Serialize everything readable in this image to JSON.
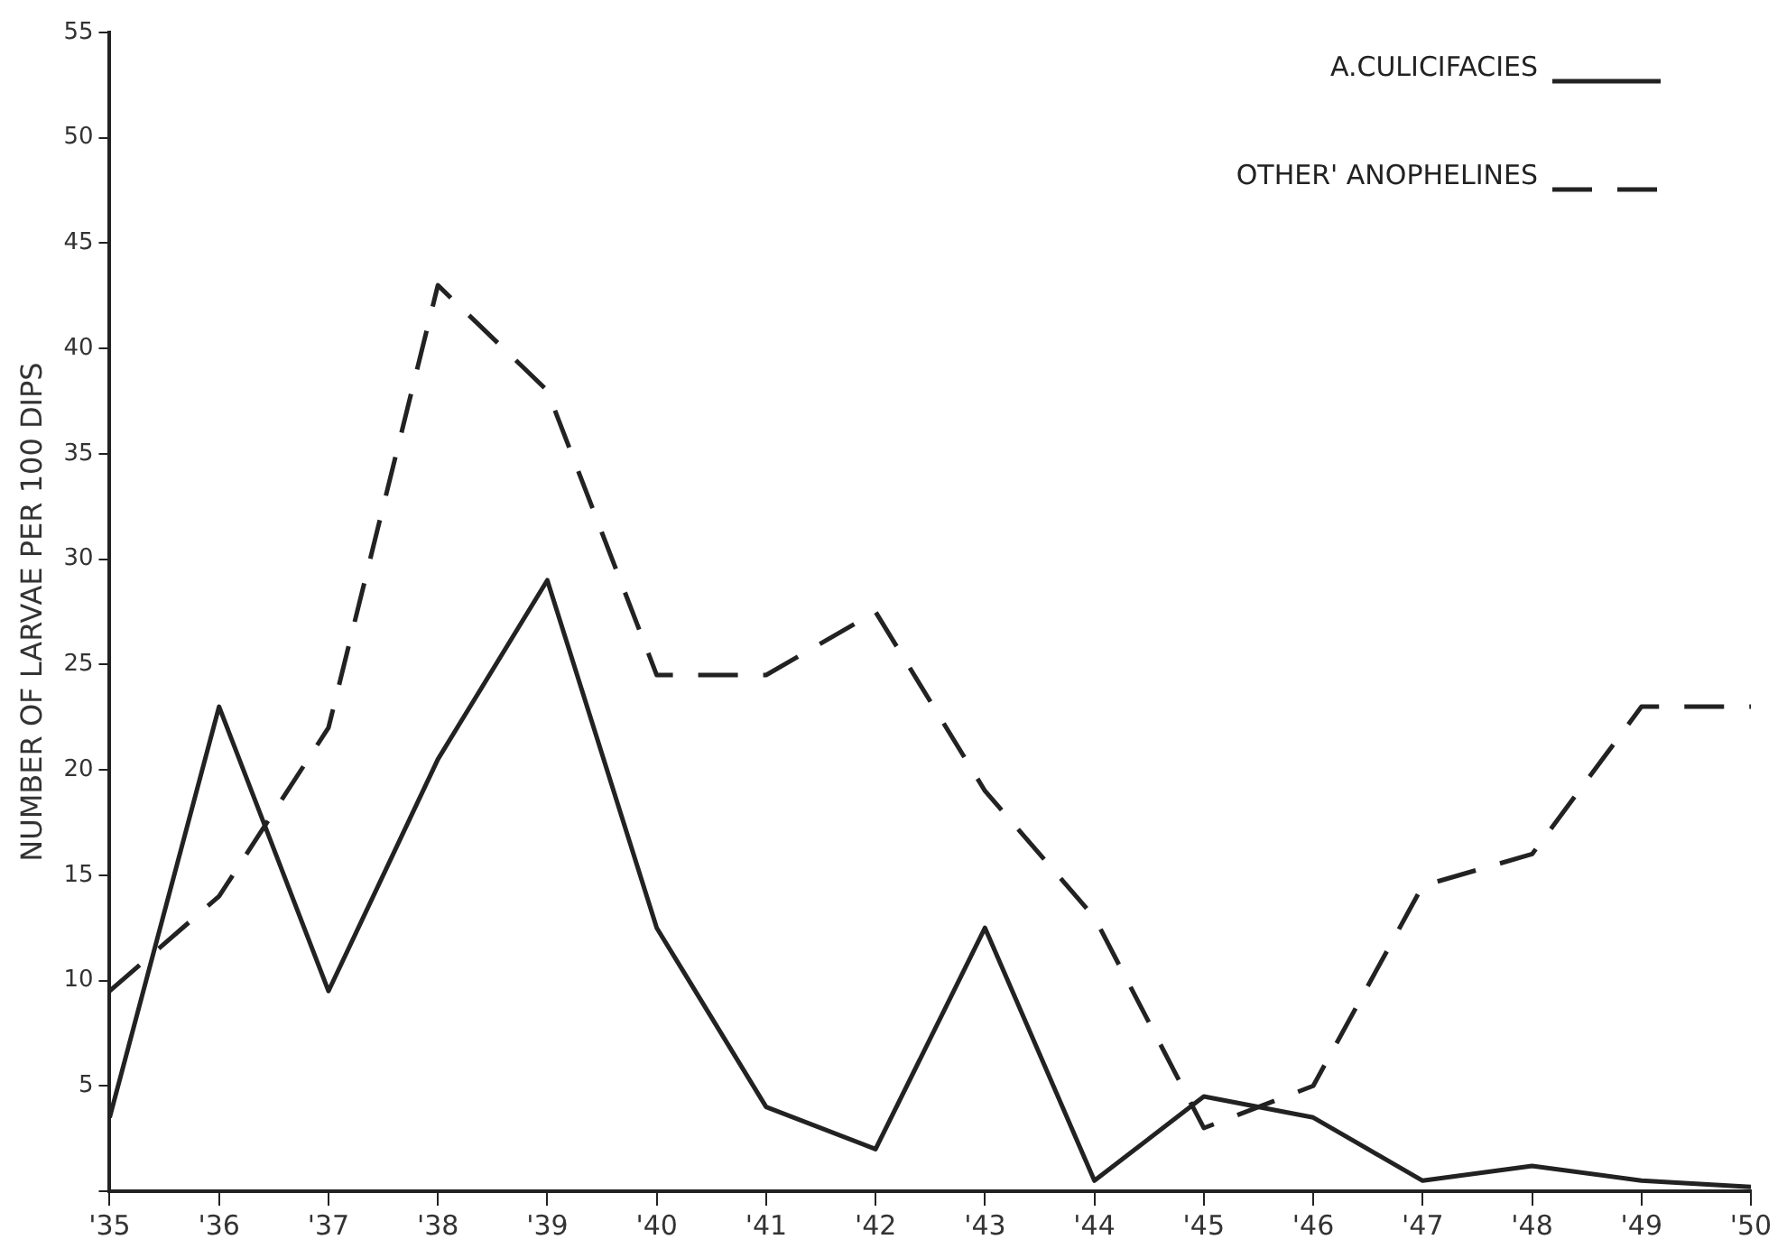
{
  "chart_data": {
    "type": "line",
    "ylabel": "NUMBER OF LARVAE PER 100 DIPS",
    "categories": [
      "'35",
      "'36",
      "'37",
      "'38",
      "'39",
      "'40",
      "'41",
      "'42",
      "'43",
      "'44",
      "'45",
      "'46",
      "'47",
      "'48",
      "'49",
      "'50"
    ],
    "series": [
      {
        "name": "A.CULICIFACIES",
        "color": "#222222",
        "line_style": "solid",
        "values": [
          3.5,
          23,
          9.5,
          20.5,
          29,
          12.5,
          4,
          2,
          12.5,
          0.5,
          4.5,
          3.5,
          0.5,
          1.2,
          0.5,
          0.2
        ]
      },
      {
        "name": "OTHER' ANOPHELINES",
        "color": "#222222",
        "line_style": "dashed",
        "values": [
          9.5,
          14,
          22,
          43,
          38,
          24.5,
          24.5,
          27.5,
          19,
          13,
          3,
          5,
          14.5,
          16,
          23,
          23
        ]
      }
    ],
    "ylim": [
      0,
      55
    ],
    "yticks": [
      {
        "value": 0,
        "label": null
      },
      5,
      10,
      15,
      20,
      25,
      30,
      35,
      40,
      45,
      50,
      55
    ],
    "grid": false,
    "legend": "top right",
    "marker": "none"
  }
}
